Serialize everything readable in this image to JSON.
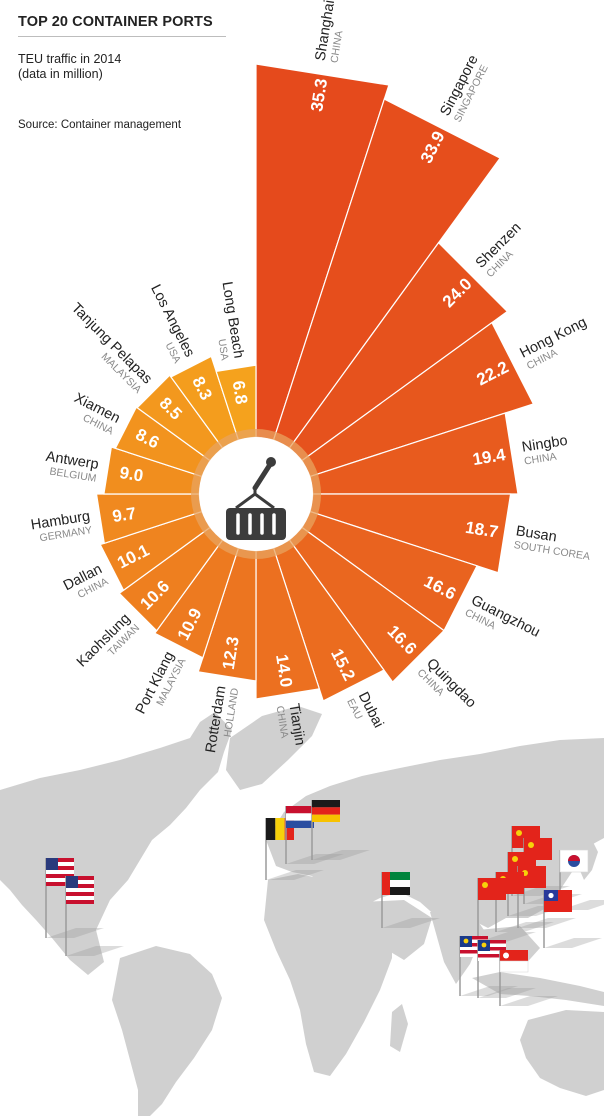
{
  "header": {
    "title": "TOP 20 CONTAINER PORTS",
    "subtitle_line1": "TEU traffic in 2014",
    "subtitle_line2": "(data in million)",
    "source": "Source: Container management"
  },
  "chart_data": {
    "type": "polar-bar",
    "title": "TOP 20 CONTAINER PORTS",
    "subtitle": "TEU traffic in 2014 (data in million)",
    "categories": [
      "Shanghai",
      "Singapore",
      "Shenzen",
      "Hong Kong",
      "Ningbo",
      "Busan",
      "Guangzhou",
      "Quingdao",
      "Dubai",
      "Tianjin",
      "Rotterdam",
      "Port Klang",
      "Kaohslung",
      "Dallan",
      "Hamburg",
      "Antwerp",
      "Xiamen",
      "Tanjung Pelapas",
      "Los Angeles",
      "Long Beach"
    ],
    "countries": [
      "CHINA",
      "SINGAPORE",
      "CHINA",
      "CHINA",
      "CHINA",
      "SOUTH COREA",
      "CHINA",
      "CHINA",
      "EAU",
      "CHINA",
      "HOLLAND",
      "MALAYSIA",
      "TAIWAN",
      "CHINA",
      "GERMANY",
      "BELGIUM",
      "CHINA",
      "MALAYSIA",
      "USA",
      "USA"
    ],
    "values": [
      35.3,
      33.9,
      24.0,
      22.2,
      19.4,
      18.7,
      16.6,
      16.6,
      15.2,
      14.0,
      12.3,
      10.9,
      10.6,
      10.1,
      9.7,
      9.0,
      8.6,
      8.5,
      8.3,
      6.8
    ],
    "value_labels": [
      "35.3",
      "33.9",
      "24.0",
      "22.2",
      "19.4",
      "18.7",
      "16.6",
      "16.6",
      "15.2",
      "14.0",
      "12.3",
      "10.9",
      "10.6",
      "10.1",
      "9.7",
      "9.0",
      "8.6",
      "8.5",
      "8.3",
      "6.8"
    ],
    "colors": {
      "dark": "#e54a1c",
      "mid": "#ec7220",
      "light": "#f5a21d",
      "center_ring": "#e8a35f",
      "center_disc": "#ffffff",
      "map": "#d0d0d0"
    },
    "center_icon": "container-crane-icon"
  }
}
